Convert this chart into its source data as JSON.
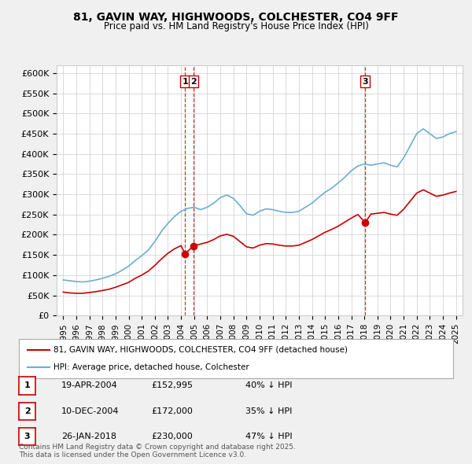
{
  "title_line1": "81, GAVIN WAY, HIGHWOODS, COLCHESTER, CO4 9FF",
  "title_line2": "Price paid vs. HM Land Registry's House Price Index (HPI)",
  "ylabel_ticks": [
    "£0",
    "£50K",
    "£100K",
    "£150K",
    "£200K",
    "£250K",
    "£300K",
    "£350K",
    "£400K",
    "£450K",
    "£500K",
    "£550K",
    "£600K"
  ],
  "ytick_values": [
    0,
    50000,
    100000,
    150000,
    200000,
    250000,
    300000,
    350000,
    400000,
    450000,
    500000,
    550000,
    600000
  ],
  "ylim": [
    0,
    620000
  ],
  "xlim_start": 1994.5,
  "xlim_end": 2025.5,
  "hpi_color": "#6baed6",
  "price_color": "#cc0000",
  "marker_color": "#cc0000",
  "vline_color": "#cc0000",
  "grid_color": "#cccccc",
  "background_color": "#f0f0f0",
  "plot_bg_color": "#ffffff",
  "legend_label_red": "81, GAVIN WAY, HIGHWOODS, COLCHESTER, CO4 9FF (detached house)",
  "legend_label_blue": "HPI: Average price, detached house, Colchester",
  "transactions": [
    {
      "num": 1,
      "date": "19-APR-2004",
      "price": 152995,
      "pct": "40%",
      "x_year": 2004.3
    },
    {
      "num": 2,
      "date": "10-DEC-2004",
      "price": 172000,
      "pct": "35%",
      "x_year": 2004.95
    },
    {
      "num": 3,
      "date": "26-JAN-2018",
      "price": 230000,
      "pct": "47%",
      "x_year": 2018.07
    }
  ],
  "footer_text": "Contains HM Land Registry data © Crown copyright and database right 2025.\nThis data is licensed under the Open Government Licence v3.0.",
  "hpi_data_x": [
    1995.0,
    1995.5,
    1996.0,
    1996.5,
    1997.0,
    1997.5,
    1998.0,
    1998.5,
    1999.0,
    1999.5,
    2000.0,
    2000.5,
    2001.0,
    2001.5,
    2002.0,
    2002.5,
    2003.0,
    2003.5,
    2004.0,
    2004.5,
    2005.0,
    2005.5,
    2006.0,
    2006.5,
    2007.0,
    2007.5,
    2008.0,
    2008.5,
    2009.0,
    2009.5,
    2010.0,
    2010.5,
    2011.0,
    2011.5,
    2012.0,
    2012.5,
    2013.0,
    2013.5,
    2014.0,
    2014.5,
    2015.0,
    2015.5,
    2016.0,
    2016.5,
    2017.0,
    2017.5,
    2018.0,
    2018.5,
    2019.0,
    2019.5,
    2020.0,
    2020.5,
    2021.0,
    2021.5,
    2022.0,
    2022.5,
    2023.0,
    2023.5,
    2024.0,
    2024.5,
    2025.0
  ],
  "hpi_data_y": [
    88000,
    86000,
    84000,
    83000,
    85000,
    88000,
    92000,
    97000,
    103000,
    112000,
    122000,
    136000,
    148000,
    162000,
    183000,
    208000,
    228000,
    245000,
    258000,
    265000,
    268000,
    262000,
    268000,
    278000,
    292000,
    298000,
    290000,
    272000,
    252000,
    248000,
    258000,
    264000,
    262000,
    258000,
    255000,
    255000,
    258000,
    268000,
    278000,
    292000,
    305000,
    315000,
    328000,
    342000,
    358000,
    370000,
    375000,
    372000,
    375000,
    378000,
    372000,
    368000,
    390000,
    420000,
    450000,
    462000,
    450000,
    438000,
    442000,
    450000,
    455000
  ],
  "price_data_x": [
    1995.0,
    1995.5,
    1996.0,
    1996.5,
    1997.0,
    1997.5,
    1998.0,
    1998.5,
    1999.0,
    1999.5,
    2000.0,
    2000.5,
    2001.0,
    2001.5,
    2002.0,
    2002.5,
    2003.0,
    2003.5,
    2004.0,
    2004.3,
    2004.95,
    2005.5,
    2006.0,
    2006.5,
    2007.0,
    2007.5,
    2008.0,
    2008.5,
    2009.0,
    2009.5,
    2010.0,
    2010.5,
    2011.0,
    2011.5,
    2012.0,
    2012.5,
    2013.0,
    2013.5,
    2014.0,
    2014.5,
    2015.0,
    2015.5,
    2016.0,
    2016.5,
    2017.0,
    2017.5,
    2018.07,
    2018.5,
    2019.0,
    2019.5,
    2020.0,
    2020.5,
    2021.0,
    2021.5,
    2022.0,
    2022.5,
    2023.0,
    2023.5,
    2024.0,
    2024.5,
    2025.0
  ],
  "price_data_y": [
    58000,
    56000,
    55000,
    55000,
    57000,
    59000,
    62000,
    65000,
    70000,
    76000,
    82000,
    92000,
    100000,
    110000,
    124000,
    140000,
    154000,
    165000,
    173000,
    152995,
    172000,
    177000,
    181000,
    188000,
    197000,
    201000,
    196000,
    183000,
    170000,
    167000,
    174000,
    178000,
    177000,
    174000,
    172000,
    172000,
    174000,
    181000,
    188000,
    197000,
    206000,
    213000,
    221000,
    231000,
    241000,
    250000,
    230000,
    251000,
    253000,
    255000,
    251000,
    248000,
    263000,
    283000,
    303000,
    311000,
    303000,
    295000,
    298000,
    303000,
    307000
  ]
}
